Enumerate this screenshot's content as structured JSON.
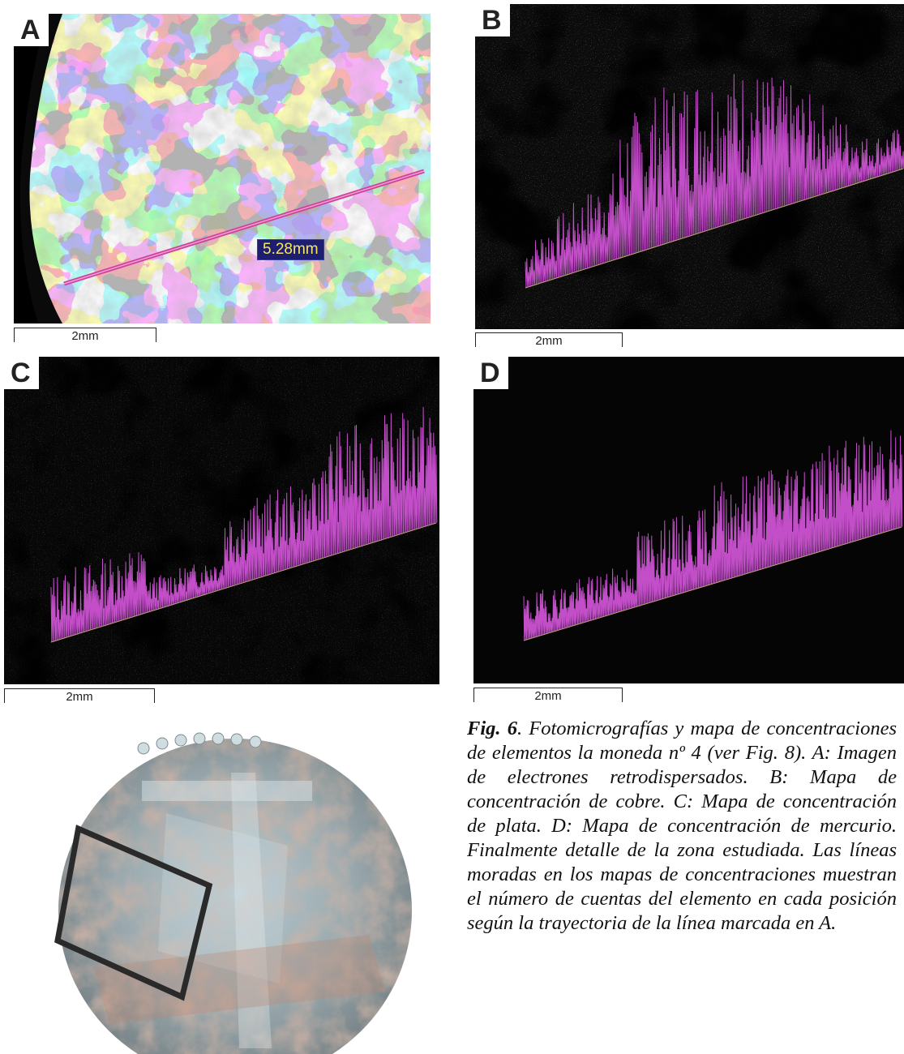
{
  "panels": {
    "a": {
      "label": "A",
      "scale": "2mm",
      "measurement": "5.28mm"
    },
    "b": {
      "label": "B",
      "scale": "2mm"
    },
    "c": {
      "label": "C",
      "scale": "2mm"
    },
    "d": {
      "label": "D",
      "scale": "2mm"
    }
  },
  "caption": {
    "fig": "Fig. 6",
    "text": ". Fotomicrografías y mapa de concentraciones de elementos la moneda nº 4 (ver Fig. 8). A: Imagen de electrones retrodispersados. B: Mapa de concentración de cobre. C: Mapa de concentración de plata. D: Mapa de concentración de mercurio. Finalmente detalle de la zona estudiada. Las líneas moradas en los mapas de concentraciones muestran el número de cuentas del elemento en cada posición según la trayectoria de la línea marcada en A."
  },
  "colors": {
    "profile": "#c24ec8",
    "baseline": "#c8c860",
    "measure_line": "#d0409a",
    "frame": "#2a2a2a"
  }
}
